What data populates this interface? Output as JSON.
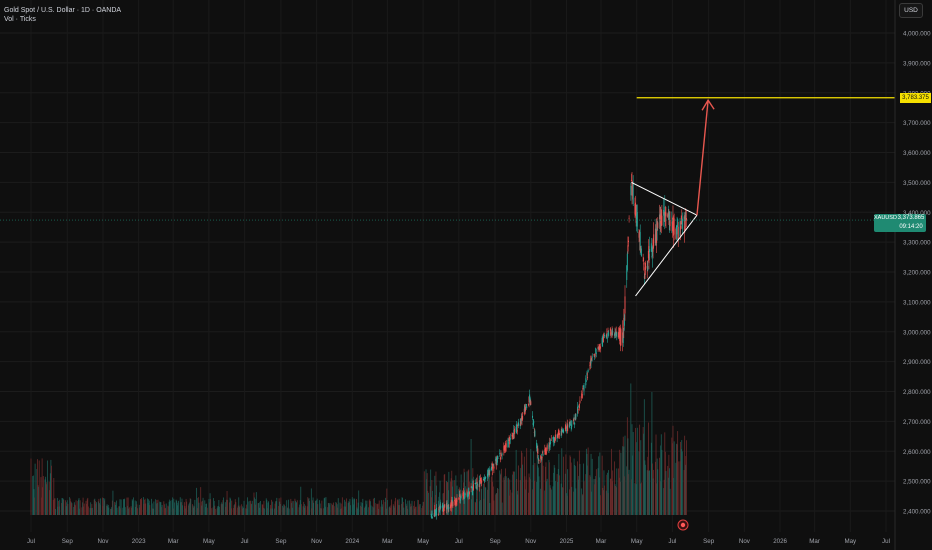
{
  "legend": {
    "symbol_line": "Gold Spot / U.S. Dollar · 1D · OANDA",
    "volume_line": "Vol · Ticks"
  },
  "currency_button": "USD",
  "last_price": {
    "ticker": "XAUUSD",
    "value": "3,373.865",
    "countdown": "09:14:20",
    "color": "#1f8a72"
  },
  "target_price": {
    "value": "3,783.375",
    "color": "#f5e000"
  },
  "colors": {
    "background": "#0f0f0f",
    "up": "#26a69a",
    "down": "#ef5350",
    "drawing_white": "#ffffff",
    "arrow": "#e8574f",
    "target_line": "#f5e000"
  },
  "icons": {
    "alert_bubble": "record-dot-icon"
  },
  "chart_data": {
    "type": "candlestick",
    "y_range": [
      2350,
      4080
    ],
    "y_ticks": [
      {
        "label": "4,000.000",
        "value": 4000
      },
      {
        "label": "3,900.000",
        "value": 3900
      },
      {
        "label": "3,800.000",
        "value": 3800
      },
      {
        "label": "3,700.000",
        "value": 3700
      },
      {
        "label": "3,600.000",
        "value": 3600
      },
      {
        "label": "3,500.000",
        "value": 3500
      },
      {
        "label": "3,400.000",
        "value": 3400
      },
      {
        "label": "3,300.000",
        "value": 3300
      },
      {
        "label": "3,200.000",
        "value": 3200
      },
      {
        "label": "3,100.000",
        "value": 3100
      },
      {
        "label": "3,000.000",
        "value": 3000
      },
      {
        "label": "2,900.000",
        "value": 2900
      },
      {
        "label": "2,800.000",
        "value": 2800
      },
      {
        "label": "2,700.000",
        "value": 2700
      },
      {
        "label": "2,600.000",
        "value": 2600
      },
      {
        "label": "2,500.000",
        "value": 2500
      },
      {
        "label": "2,400.000",
        "value": 2400
      }
    ],
    "x_ticks": [
      {
        "label": "Jul",
        "date": "2022-07"
      },
      {
        "label": "Sep",
        "date": "2022-09"
      },
      {
        "label": "Nov",
        "date": "2022-11"
      },
      {
        "label": "2023",
        "date": "2023-01"
      },
      {
        "label": "Mar",
        "date": "2023-03"
      },
      {
        "label": "May",
        "date": "2023-05"
      },
      {
        "label": "Jul",
        "date": "2023-07"
      },
      {
        "label": "Sep",
        "date": "2023-09"
      },
      {
        "label": "Nov",
        "date": "2023-11"
      },
      {
        "label": "2024",
        "date": "2024-01"
      },
      {
        "label": "Mar",
        "date": "2024-03"
      },
      {
        "label": "May",
        "date": "2024-05"
      },
      {
        "label": "Jul",
        "date": "2024-07"
      },
      {
        "label": "Sep",
        "date": "2024-09"
      },
      {
        "label": "Nov",
        "date": "2024-11"
      },
      {
        "label": "2025",
        "date": "2025-01"
      },
      {
        "label": "Mar",
        "date": "2025-03"
      },
      {
        "label": "May",
        "date": "2025-05"
      },
      {
        "label": "Jul",
        "date": "2025-07"
      },
      {
        "label": "Sep",
        "date": "2025-09"
      },
      {
        "label": "Nov",
        "date": "2025-11"
      },
      {
        "label": "2026",
        "date": "2026-01"
      },
      {
        "label": "Mar",
        "date": "2026-03"
      },
      {
        "label": "May",
        "date": "2026-05"
      },
      {
        "label": "Jul",
        "date": "2026-07"
      }
    ],
    "price_path": [
      {
        "date": "2024-05-15",
        "price": 2390
      },
      {
        "date": "2024-06-15",
        "price": 2420
      },
      {
        "date": "2024-07-15",
        "price": 2460
      },
      {
        "date": "2024-08-15",
        "price": 2510
      },
      {
        "date": "2024-09-15",
        "price": 2600
      },
      {
        "date": "2024-10-15",
        "price": 2700
      },
      {
        "date": "2024-10-30",
        "price": 2780
      },
      {
        "date": "2024-11-15",
        "price": 2570
      },
      {
        "date": "2024-12-15",
        "price": 2650
      },
      {
        "date": "2025-01-15",
        "price": 2700
      },
      {
        "date": "2025-02-15",
        "price": 2920
      },
      {
        "date": "2025-03-15",
        "price": 3000
      },
      {
        "date": "2025-04-08",
        "price": 2980
      },
      {
        "date": "2025-04-22",
        "price": 3500
      },
      {
        "date": "2025-05-15",
        "price": 3200
      },
      {
        "date": "2025-06-15",
        "price": 3400
      },
      {
        "date": "2025-07-10",
        "price": 3330
      },
      {
        "date": "2025-07-25",
        "price": 3374
      }
    ],
    "drawings": {
      "triangle_top_line": [
        {
          "date": "2025-04-22",
          "price": 3500
        },
        {
          "date": "2025-08-12",
          "price": 3390
        }
      ],
      "triangle_bottom_line": [
        {
          "date": "2025-04-29",
          "price": 3120
        },
        {
          "date": "2025-08-12",
          "price": 3390
        }
      ],
      "projection_arrow": [
        {
          "date": "2025-08-12",
          "price": 3390
        },
        {
          "date": "2025-08-31",
          "price": 3775
        }
      ],
      "target_line": {
        "price": 3783.375,
        "from": "2025-05-01"
      }
    },
    "current_price": 3373.865
  }
}
